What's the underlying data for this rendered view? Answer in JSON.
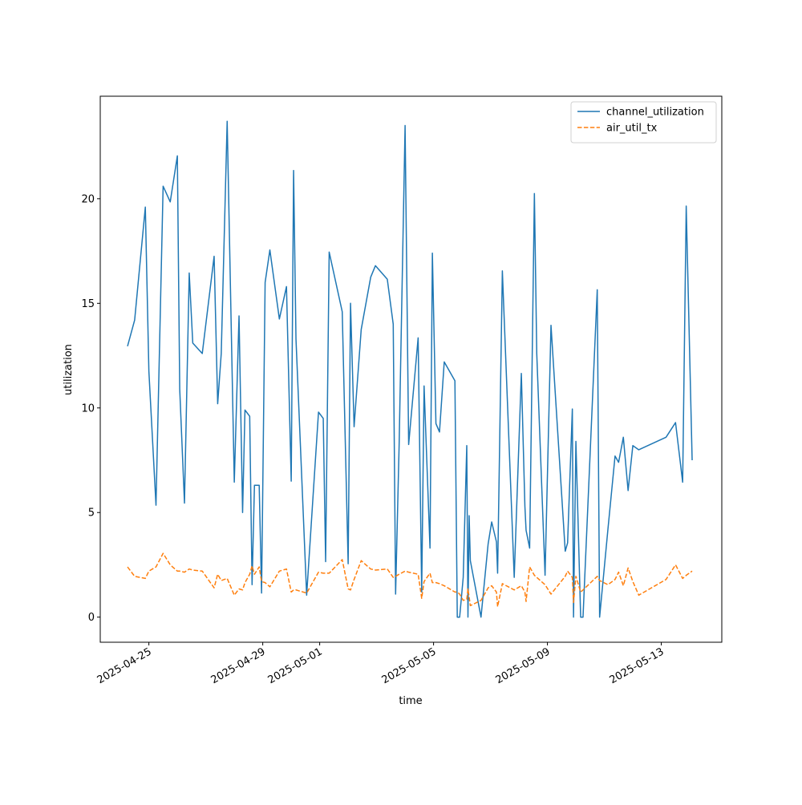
{
  "chart_data": {
    "type": "line",
    "xlabel": "time",
    "ylabel": "utilization",
    "x": [
      "2025-04-24 06:00",
      "2025-04-24 12:00",
      "2025-04-24 21:00",
      "2025-04-25 00:00",
      "2025-04-25 06:00",
      "2025-04-25 12:00",
      "2025-04-25 18:00",
      "2025-04-26 00:00",
      "2025-04-26 02:00",
      "2025-04-26 06:00",
      "2025-04-26 10:00",
      "2025-04-26 13:00",
      "2025-04-26 21:00",
      "2025-04-27 07:00",
      "2025-04-27 10:00",
      "2025-04-27 13:00",
      "2025-04-27 18:00",
      "2025-04-28 00:00",
      "2025-04-28 04:00",
      "2025-04-28 07:00",
      "2025-04-28 09:00",
      "2025-04-28 13:00",
      "2025-04-28 15:00",
      "2025-04-28 17:00",
      "2025-04-28 21:00",
      "2025-04-28 23:00",
      "2025-04-29 02:00",
      "2025-04-29 06:00",
      "2025-04-29 14:00",
      "2025-04-29 20:00",
      "2025-04-30 00:00",
      "2025-04-30 02:00",
      "2025-04-30 04:00",
      "2025-04-30 13:00",
      "2025-04-30 23:00",
      "2025-05-01 03:00",
      "2025-05-01 05:00",
      "2025-05-01 08:00",
      "2025-05-01 19:00",
      "2025-05-02 00:00",
      "2025-05-02 02:00",
      "2025-05-02 05:00",
      "2025-05-02 11:00",
      "2025-05-02 19:00",
      "2025-05-02 23:00",
      "2025-05-03 09:00",
      "2025-05-03 14:00",
      "2025-05-03 16:00",
      "2025-05-03 19:00",
      "2025-05-04 00:00",
      "2025-05-04 03:00",
      "2025-05-04 11:00",
      "2025-05-04 14:00",
      "2025-05-04 16:00",
      "2025-05-04 21:00",
      "2025-05-04 23:00",
      "2025-05-05 02:00",
      "2025-05-05 05:00",
      "2025-05-05 09:00",
      "2025-05-05 18:00",
      "2025-05-05 20:00",
      "2025-05-05 22:00",
      "2025-05-06 01:00",
      "2025-05-06 04:00",
      "2025-05-06 05:00",
      "2025-05-06 06:00",
      "2025-05-06 07:00",
      "2025-05-06 16:00",
      "2025-05-06 22:00",
      "2025-05-07 01:00",
      "2025-05-07 05:00",
      "2025-05-07 06:00",
      "2025-05-07 10:00",
      "2025-05-07 20:00",
      "2025-05-08 02:00",
      "2025-05-08 05:00",
      "2025-05-08 06:00",
      "2025-05-08 09:00",
      "2025-05-08 13:00",
      "2025-05-08 15:00",
      "2025-05-08 22:00",
      "2025-05-09 03:00",
      "2025-05-09 15:00",
      "2025-05-09 17:00",
      "2025-05-09 21:00",
      "2025-05-09 22:00",
      "2025-05-10 00:00",
      "2025-05-10 04:00",
      "2025-05-10 06:00",
      "2025-05-10 18:00",
      "2025-05-10 20:00",
      "2025-05-11 03:00",
      "2025-05-11 09:00",
      "2025-05-11 12:00",
      "2025-05-11 16:00",
      "2025-05-11 20:00",
      "2025-05-12 00:00",
      "2025-05-12 05:00",
      "2025-05-13 04:00",
      "2025-05-13 12:00",
      "2025-05-13 18:00",
      "2025-05-13 21:00",
      "2025-05-14 02:00"
    ],
    "series": [
      {
        "name": "channel_utilization",
        "color": "#1f77b4",
        "dash": false,
        "values": [
          12.95,
          14.2,
          19.6,
          11.75,
          5.35,
          20.6,
          19.85,
          22.05,
          10.9,
          5.45,
          16.45,
          13.1,
          12.6,
          17.25,
          10.2,
          12.6,
          23.7,
          6.45,
          14.4,
          5.0,
          9.9,
          9.6,
          1.55,
          6.3,
          6.3,
          1.15,
          16.0,
          17.55,
          14.25,
          15.8,
          6.5,
          21.35,
          13.3,
          1.05,
          9.8,
          9.5,
          2.65,
          17.45,
          14.6,
          2.55,
          15.0,
          9.1,
          13.75,
          16.25,
          16.8,
          16.15,
          14.0,
          1.1,
          8.3,
          23.5,
          8.25,
          13.35,
          1.2,
          11.05,
          3.3,
          17.4,
          9.25,
          8.85,
          12.2,
          11.3,
          0,
          0,
          1.9,
          8.2,
          0,
          4.85,
          2.7,
          0,
          3.5,
          4.55,
          3.6,
          2.1,
          16.55,
          1.9,
          11.65,
          5.3,
          4.15,
          3.3,
          20.25,
          12.6,
          2.0,
          13.95,
          3.15,
          3.55,
          9.95,
          0,
          8.4,
          0,
          0,
          15.65,
          0,
          4.2,
          7.7,
          7.4,
          8.6,
          6.05,
          8.2,
          8.0,
          8.6,
          9.3,
          6.45,
          19.65,
          7.5
        ]
      },
      {
        "name": "air_util_tx",
        "color": "#ff7f0e",
        "dash": true,
        "values": [
          2.4,
          1.95,
          1.85,
          2.2,
          2.4,
          3.05,
          2.5,
          2.2,
          2.2,
          2.15,
          2.3,
          2.25,
          2.2,
          1.4,
          2.05,
          1.75,
          1.85,
          1.05,
          1.35,
          1.3,
          1.65,
          2.05,
          2.45,
          2.05,
          2.4,
          1.7,
          1.65,
          1.45,
          2.2,
          2.3,
          1.2,
          1.3,
          1.3,
          1.15,
          2.15,
          2.1,
          2.1,
          2.1,
          2.75,
          1.35,
          1.3,
          1.8,
          2.7,
          2.3,
          2.25,
          2.3,
          1.9,
          1.95,
          2.05,
          2.2,
          2.15,
          2.05,
          0.9,
          1.7,
          2.1,
          1.65,
          1.65,
          1.6,
          1.5,
          1.2,
          1.2,
          1.1,
          0.8,
          0.85,
          1.35,
          0.95,
          0.55,
          0.8,
          1.4,
          1.5,
          1.2,
          0.5,
          1.6,
          1.3,
          1.5,
          1.2,
          0.75,
          2.4,
          2.0,
          1.9,
          1.55,
          1.1,
          1.95,
          2.2,
          1.9,
          0.7,
          1.95,
          1.2,
          1.3,
          1.95,
          1.75,
          1.55,
          1.8,
          2.15,
          1.5,
          2.35,
          1.7,
          1.05,
          1.8,
          2.5,
          1.85,
          2.0,
          2.2
        ]
      }
    ],
    "xlim": [
      "2025-04-23 07:00",
      "2025-05-15 03:00"
    ],
    "xticks": [
      "2025-04-25",
      "2025-04-29",
      "2025-05-01",
      "2025-05-05",
      "2025-05-09",
      "2025-05-13"
    ],
    "ylim": [
      -1.2,
      24.9
    ],
    "yticks": [
      0,
      5,
      10,
      15,
      20
    ],
    "legend": "upper right"
  }
}
